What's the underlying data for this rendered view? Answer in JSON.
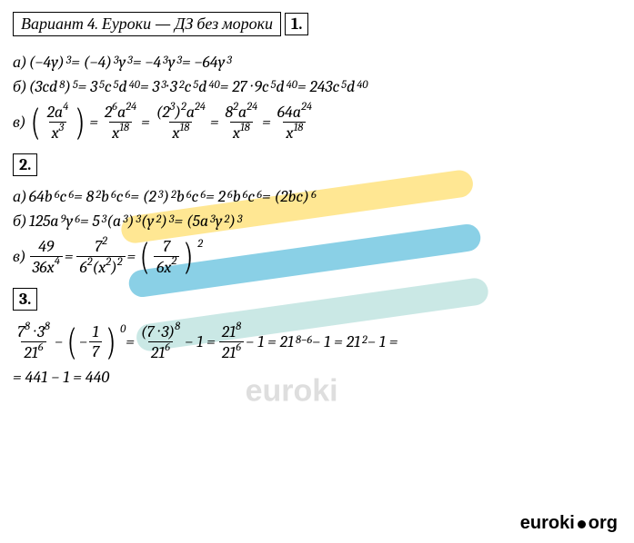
{
  "header": "Вариант 4. Еуроки  —  ДЗ без мороки",
  "sections": {
    "s1": {
      "num": "1."
    },
    "s2": {
      "num": "2."
    },
    "s3": {
      "num": "3."
    }
  },
  "p1a_label": "а) ",
  "p1a_1": "(−4y)",
  "p1a_1e": "3",
  "p1a_eq1": " = (−4)",
  "p1a_2e": "3",
  "p1a_3": "y",
  "p1a_3e": "3",
  "p1a_eq2": " = −4",
  "p1a_4e": "3",
  "p1a_5": "y",
  "p1a_5e": "3",
  "p1a_eq3": " = −64y",
  "p1a_6e": "3",
  "p1b_label": "б) ",
  "p1b_1": "(3cd",
  "p1b_1e": "8",
  "p1b_2": ")",
  "p1b_2e": "5",
  "p1b_eq1": " = 3",
  "p1b_3e": "5",
  "p1b_4": "c",
  "p1b_4e": "5",
  "p1b_5": "d",
  "p1b_5e": "40",
  "p1b_eq2": " = 3",
  "p1b_6e": "3",
  "p1b_7": " · 3",
  "p1b_7e": "2",
  "p1b_8": "c",
  "p1b_8e": "5",
  "p1b_9": "d",
  "p1b_9e": "40",
  "p1b_eq3": " = 27 · 9c",
  "p1b_10e": "5",
  "p1b_11": "d",
  "p1b_11e": "40",
  "p1b_eq4": " = 243c",
  "p1b_12e": "5",
  "p1b_13": "d",
  "p1b_13e": "40",
  "p1v_label": "в) ",
  "p1v_f1n": "2a",
  "p1v_f1ne": "4",
  "p1v_f1d": "x",
  "p1v_f1de": "3",
  "p1v_eq1": " = ",
  "p1v_f2n": "2",
  "p1v_f2ne": "6",
  "p1v_f2n2": "a",
  "p1v_f2n2e": "24",
  "p1v_f2d": "x",
  "p1v_f2de": "18",
  "p1v_eq2": " = ",
  "p1v_f3n1": "(2",
  "p1v_f3n1e": "3",
  "p1v_f3n2": ")",
  "p1v_f3n2e": "2",
  "p1v_f3n3": "a",
  "p1v_f3n3e": "24",
  "p1v_f3d": "x",
  "p1v_f3de": "18",
  "p1v_eq3": " = ",
  "p1v_f4n1": "8",
  "p1v_f4n1e": "2",
  "p1v_f4n2": "a",
  "p1v_f4n2e": "24",
  "p1v_f4d": "x",
  "p1v_f4de": "18",
  "p1v_eq4": " = ",
  "p1v_f5n": "64a",
  "p1v_f5ne": "24",
  "p1v_f5d": "x",
  "p1v_f5de": "18",
  "p2a_label": "а) ",
  "p2a_1": "64b",
  "p2a_1e": "6",
  "p2a_2": "c",
  "p2a_2e": "6",
  "p2a_eq1": " = 8",
  "p2a_3e": "2",
  "p2a_4": "b",
  "p2a_4e": "6",
  "p2a_5": "c",
  "p2a_5e": "6",
  "p2a_eq2": " = (2",
  "p2a_6e": "3",
  "p2a_7": ")",
  "p2a_7e": "2",
  "p2a_8": "b",
  "p2a_8e": "6",
  "p2a_9": "c",
  "p2a_9e": "6",
  "p2a_eq3": " = 2",
  "p2a_10e": "6",
  "p2a_11": "b",
  "p2a_11e": "6",
  "p2a_12": "c",
  "p2a_12e": "6",
  "p2a_eq4": " = (2bc)",
  "p2a_13e": "6",
  "p2b_label": "б) ",
  "p2b_1": "125a",
  "p2b_1e": "9",
  "p2b_2": "y",
  "p2b_2e": "6",
  "p2b_eq1": " = 5",
  "p2b_3e": "3",
  "p2b_4": "(a",
  "p2b_4e": "3",
  "p2b_5": ")",
  "p2b_5e": "3",
  "p2b_6": "(y",
  "p2b_6e": "2",
  "p2b_7": ")",
  "p2b_7e": "3",
  "p2b_eq2": " = (5a",
  "p2b_8e": "3",
  "p2b_9": "y",
  "p2b_9e": "2",
  "p2b_10": ")",
  "p2b_10e": "3",
  "p2v_label": "в) ",
  "p2v_f1n": "49",
  "p2v_f1d": "36x",
  "p2v_f1de": "4",
  "p2v_eq1": " = ",
  "p2v_f2n": "7",
  "p2v_f2ne": "2",
  "p2v_f2d1": "6",
  "p2v_f2d1e": "2",
  "p2v_f2d2": "(x",
  "p2v_f2d2e": "2",
  "p2v_f2d3": ")",
  "p2v_f2d3e": "2",
  "p2v_eq2": " = ",
  "p2v_f3n": "7",
  "p2v_f3d": "6x",
  "p2v_f3de": "2",
  "p2v_oe": "2",
  "p3_f1n1": "7",
  "p3_f1n1e": "8",
  "p3_f1n2": " · 3",
  "p3_f1n2e": "8",
  "p3_f1d": "21",
  "p3_f1de": "6",
  "p3_m1": " − ",
  "p3_f2n": "1",
  "p3_f2d": "7",
  "p3_f2oe": "0",
  "p3_eq1": " = ",
  "p3_f3n": "(7 · 3)",
  "p3_f3ne": "8",
  "p3_f3d": "21",
  "p3_f3de": "6",
  "p3_m2": " − 1 = ",
  "p3_f4n": "21",
  "p3_f4ne": "8",
  "p3_f4d": "21",
  "p3_f4de": "6",
  "p3_m3": " − 1 = 21",
  "p3_e1": "8−6",
  "p3_m4": " − 1 = 21",
  "p3_e2": "2",
  "p3_m5": " − 1 =",
  "p3_line2": "= 441 − 1 = 440",
  "footer1": "euroki",
  "footer2": "org",
  "wm_text": "euroki",
  "colors": {
    "stripe1": "#ffd43b",
    "stripe2": "#2aa9d2",
    "stripe3": "#9fd5d0"
  }
}
